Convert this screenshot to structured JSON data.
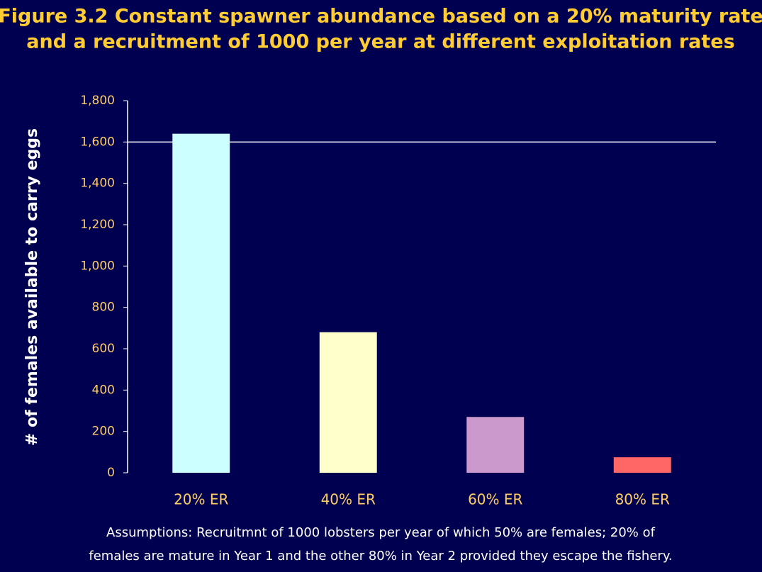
{
  "chart_data": {
    "type": "bar",
    "title": [
      "Figure 3.2 Constant spawner abundance based on a 20% maturity rate",
      "and a recruitment of 1000 per year at different exploitation rates"
    ],
    "ylabel": "# of females available to carry eggs",
    "categories": [
      "20% ER",
      "40% ER",
      "60% ER",
      "80% ER"
    ],
    "values": [
      1640,
      680,
      270,
      75
    ],
    "colors": [
      "#ccffff",
      "#ffffcc",
      "#cc99cc",
      "#ff6666"
    ],
    "ylim": [
      0,
      1800
    ],
    "yticks": [
      0,
      200,
      400,
      600,
      800,
      {
        "value": 1000,
        "label": "1,000"
      },
      {
        "value": 1200,
        "label": "1,200"
      },
      {
        "value": 1400,
        "label": "1,400"
      },
      {
        "value": 1600,
        "label": "1,600"
      },
      {
        "value": 1800,
        "label": "1,800"
      }
    ],
    "reference_line": 1600,
    "note": [
      "Assumptions: Recruitmnt of 1000 lobsters per year of which 50% are females; 20% of",
      "females are mature in Year 1 and the other 80% in Year 2 provided they escape the fishery."
    ]
  }
}
